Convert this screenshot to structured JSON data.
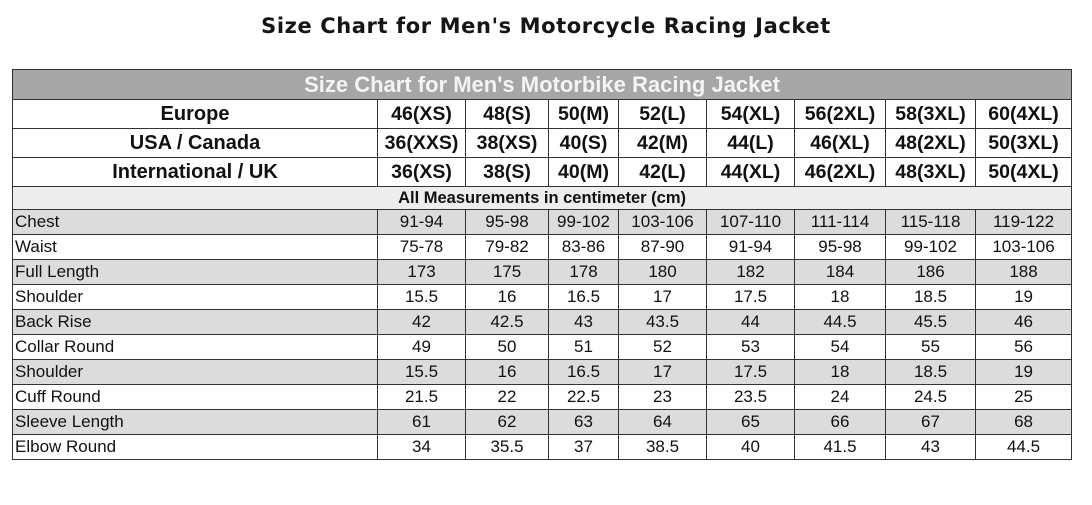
{
  "page_title": "Size Chart for Men's Motorcycle Racing Jacket",
  "table": {
    "banner": "Size Chart for Men's Motorbike Racing Jacket",
    "header_rows": [
      {
        "label": "Europe",
        "sizes": [
          "46(XS)",
          "48(S)",
          "50(M)",
          "52(L)",
          "54(XL)",
          "56(2XL)",
          "58(3XL)",
          "60(4XL)"
        ]
      },
      {
        "label": "USA / Canada",
        "sizes": [
          "36(XXS)",
          "38(XS)",
          "40(S)",
          "42(M)",
          "44(L)",
          "46(XL)",
          "48(2XL)",
          "50(3XL)"
        ]
      },
      {
        "label": "International / UK",
        "sizes": [
          "36(XS)",
          "38(S)",
          "40(M)",
          "42(L)",
          "44(XL)",
          "46(2XL)",
          "48(3XL)",
          "50(4XL)"
        ]
      }
    ],
    "units_note": "All Measurements in centimeter (cm)",
    "measurements": [
      {
        "name": "Chest",
        "values": [
          "91-94",
          "95-98",
          "99-102",
          "103-106",
          "107-110",
          "111-114",
          "115-118",
          "119-122"
        ]
      },
      {
        "name": "Waist",
        "values": [
          "75-78",
          "79-82",
          "83-86",
          "87-90",
          "91-94",
          "95-98",
          "99-102",
          "103-106"
        ]
      },
      {
        "name": "Full Length",
        "values": [
          "173",
          "175",
          "178",
          "180",
          "182",
          "184",
          "186",
          "188"
        ]
      },
      {
        "name": "Shoulder",
        "values": [
          "15.5",
          "16",
          "16.5",
          "17",
          "17.5",
          "18",
          "18.5",
          "19"
        ]
      },
      {
        "name": "Back Rise",
        "values": [
          "42",
          "42.5",
          "43",
          "43.5",
          "44",
          "44.5",
          "45.5",
          "46"
        ]
      },
      {
        "name": "Collar Round",
        "values": [
          "49",
          "50",
          "51",
          "52",
          "53",
          "54",
          "55",
          "56"
        ]
      },
      {
        "name": "Shoulder",
        "values": [
          "15.5",
          "16",
          "16.5",
          "17",
          "17.5",
          "18",
          "18.5",
          "19"
        ]
      },
      {
        "name": "Cuff Round",
        "values": [
          "21.5",
          "22",
          "22.5",
          "23",
          "23.5",
          "24",
          "24.5",
          "25"
        ]
      },
      {
        "name": "Sleeve Length",
        "values": [
          "61",
          "62",
          "63",
          "64",
          "65",
          "66",
          "67",
          "68"
        ]
      },
      {
        "name": "Elbow Round",
        "values": [
          "34",
          "35.5",
          "37",
          "38.5",
          "40",
          "41.5",
          "43",
          "44.5"
        ]
      }
    ]
  },
  "colors": {
    "banner_bg": "#a6a6a6",
    "banner_text": "#f4f4f4",
    "shaded_row": "#dcdcdc",
    "border": "#333333"
  }
}
